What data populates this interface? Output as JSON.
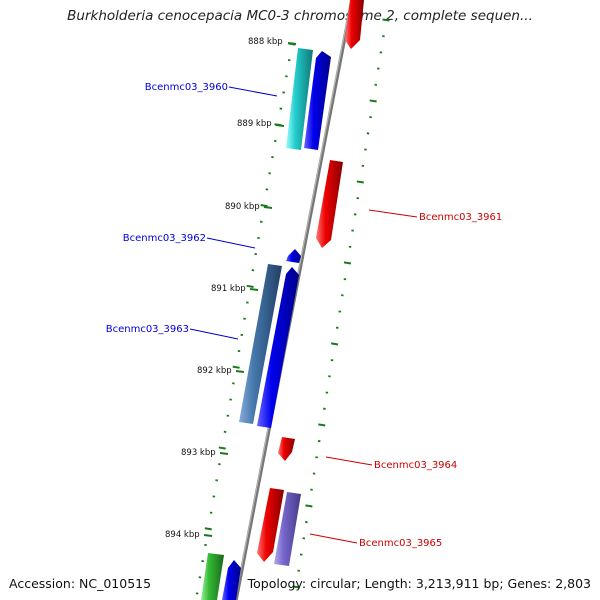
{
  "title": "Burkholderia cenocepacia MC0-3 chromosome 2, complete sequen...",
  "ticks": [
    "888 kbp",
    "889 kbp",
    "890 kbp",
    "891 kbp",
    "892 kbp",
    "893 kbp",
    "894 kbp"
  ],
  "genes": {
    "forward": [
      {
        "label": "Bcenmc03_3960",
        "color": "#0000dd"
      },
      {
        "label": "Bcenmc03_3962",
        "color": "#0000dd"
      },
      {
        "label": "Bcenmc03_3963",
        "color": "#0000dd"
      }
    ],
    "reverse": [
      {
        "label": "Bcenmc03_3961",
        "color": "#cc0000"
      },
      {
        "label": "Bcenmc03_3964",
        "color": "#cc0000"
      },
      {
        "label": "Bcenmc03_3965",
        "color": "#cc0000"
      }
    ]
  },
  "colors": {
    "axis": "#777777",
    "forward_strand": "#0000ee",
    "reverse_strand": "#ee0000",
    "tick_marks": "#1a7a1a",
    "cyan_feature": "#22cccc",
    "steelblue_feature": "#4477aa",
    "purple_feature": "#7766cc",
    "green_feature": "#33bb33"
  },
  "footer": {
    "accession": "Accession: NC_010515",
    "summary": "Topology: circular; Length: 3,213,911 bp; Genes: 2,803"
  }
}
